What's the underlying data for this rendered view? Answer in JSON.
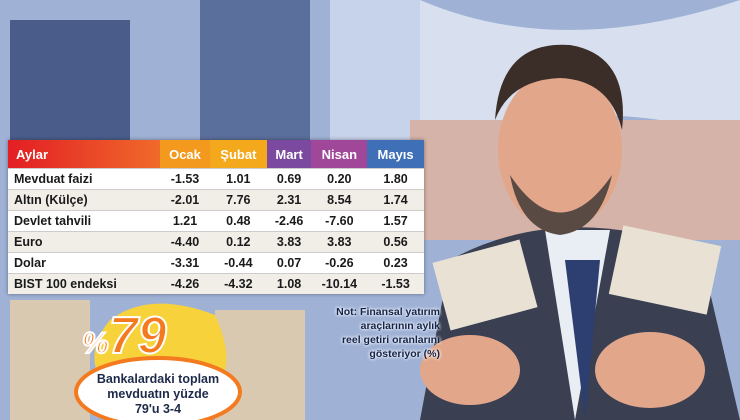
{
  "table": {
    "header": [
      "Aylar",
      "Ocak",
      "Şubat",
      "Mart",
      "Nisan",
      "Mayıs"
    ],
    "rows": [
      [
        "Mevduat faizi",
        "-1.53",
        "1.01",
        "0.69",
        "0.20",
        "1.80"
      ],
      [
        "Altın (Külçe)",
        "-2.01",
        "7.76",
        "2.31",
        "8.54",
        "1.74"
      ],
      [
        "Devlet tahvili",
        "1.21",
        "0.48",
        "-2.46",
        "-7.60",
        "1.57"
      ],
      [
        "Euro",
        "-4.40",
        "0.12",
        "3.83",
        "3.83",
        "0.56"
      ],
      [
        "Dolar",
        "-3.31",
        "-0.44",
        "0.07",
        "-0.26",
        "0.23"
      ],
      [
        "BIST 100 endeksi",
        "-4.26",
        "-4.32",
        "1.08",
        "-10.14",
        "-1.53"
      ]
    ]
  },
  "note": [
    "Not: Finansal yatırım",
    "araçlarının aylık",
    "reel getiri oranlarını",
    "gösteriyor (%)"
  ],
  "badge": {
    "percent_sign": "%",
    "number": "79",
    "text": [
      "Bankalardaki toplam",
      "mevduatın yüzde",
      "79'u 3-4"
    ]
  }
}
